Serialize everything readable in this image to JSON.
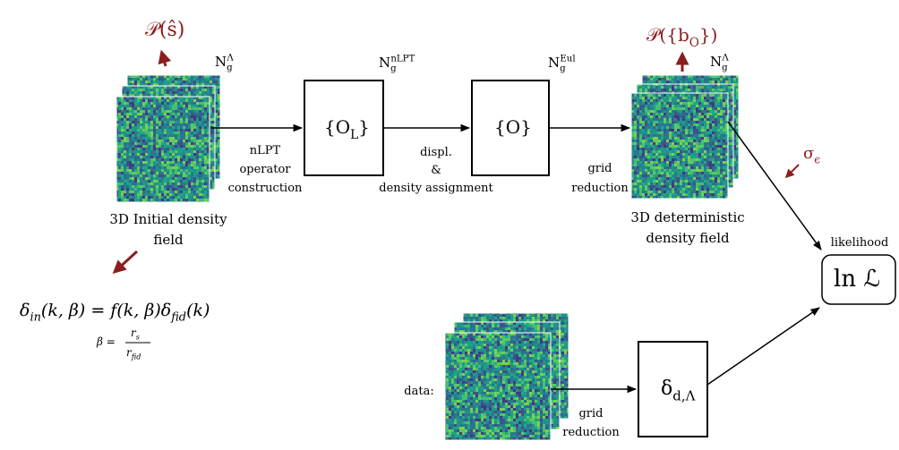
{
  "initial": {
    "prior": [
      {
        "base": "𝒫(ŝ)"
      }
    ],
    "grid_size": [
      {
        "base": "N",
        "sub": "g",
        "sup": "Λ"
      }
    ],
    "caption": [
      "3D Initial density",
      "field"
    ]
  },
  "formula": {
    "main": [
      {
        "base": "δ",
        "sub": "in"
      },
      {
        "base": "(k, β) = f(k, β)δ",
        "sub": "fid"
      },
      {
        "base": "(k)"
      }
    ],
    "beta_lhs": [
      {
        "base": "β ="
      }
    ],
    "beta_num": [
      {
        "base": "r",
        "sub": "s"
      }
    ],
    "beta_den": [
      {
        "base": "r",
        "sub": "fid"
      }
    ]
  },
  "boxes": [
    {
      "label": [
        {
          "base": "{O",
          "sub": "L"
        },
        {
          "base": "}"
        }
      ],
      "grid_size": [
        {
          "base": "N",
          "sub": "g",
          "sup": "nLPT"
        }
      ]
    },
    {
      "label": [
        {
          "base": "{O}"
        }
      ],
      "grid_size": [
        {
          "base": "N",
          "sub": "g",
          "sup": "Eul"
        }
      ]
    }
  ],
  "steps": [
    [
      "nLPT",
      "operator",
      "construction"
    ],
    [
      "displ.",
      "&",
      "density assignment"
    ],
    [
      "grid",
      "reduction"
    ]
  ],
  "deterministic": {
    "prior": [
      {
        "base": "𝒫({b",
        "sub": "O"
      },
      {
        "base": "})"
      }
    ],
    "grid_size": [
      {
        "base": "N",
        "sub": "g",
        "sup": "Λ"
      }
    ],
    "caption": [
      "3D deterministic",
      "density field"
    ]
  },
  "noise": [
    {
      "base": "σ",
      "sub": "ϵ"
    }
  ],
  "likelihood": {
    "caption": "likelihood",
    "label": [
      {
        "base": "ln ℒ"
      }
    ]
  },
  "data": {
    "caption": "data:",
    "reduction": [
      "grid",
      "reduction"
    ],
    "label": [
      {
        "base": "δ",
        "sub": "d,Λ"
      }
    ]
  }
}
